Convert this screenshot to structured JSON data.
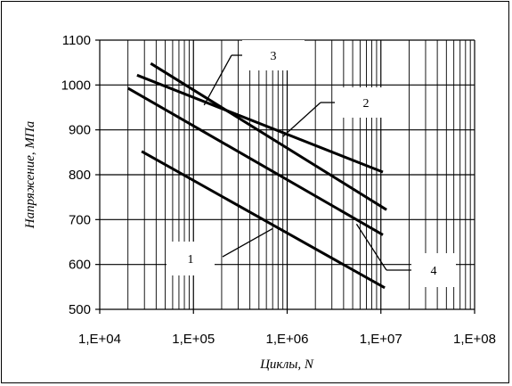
{
  "chart_data": {
    "type": "line",
    "xscale": "log",
    "xlim": [
      10000,
      100000000
    ],
    "ylim": [
      500,
      1100
    ],
    "ystep": 100,
    "grid": true,
    "xlabel": "Циклы, N",
    "ylabel": "Напряжение, МПа",
    "xtick_labels": [
      "1,E+04",
      "1,E+05",
      "1,E+06",
      "1,E+07",
      "1,E+08"
    ],
    "ytick_labels": [
      "500",
      "600",
      "700",
      "800",
      "900",
      "1000",
      "1100"
    ],
    "series": [
      {
        "name": "1",
        "x": [
          28000,
          11000000
        ],
        "y": [
          852,
          548
        ]
      },
      {
        "name": "2",
        "x": [
          25000,
          10500000
        ],
        "y": [
          1022,
          806
        ]
      },
      {
        "name": "3",
        "x": [
          35000,
          11500000
        ],
        "y": [
          1048,
          722
        ]
      },
      {
        "name": "4",
        "x": [
          20000,
          10500000
        ],
        "y": [
          993,
          666
        ]
      }
    ],
    "color": "#000000"
  }
}
